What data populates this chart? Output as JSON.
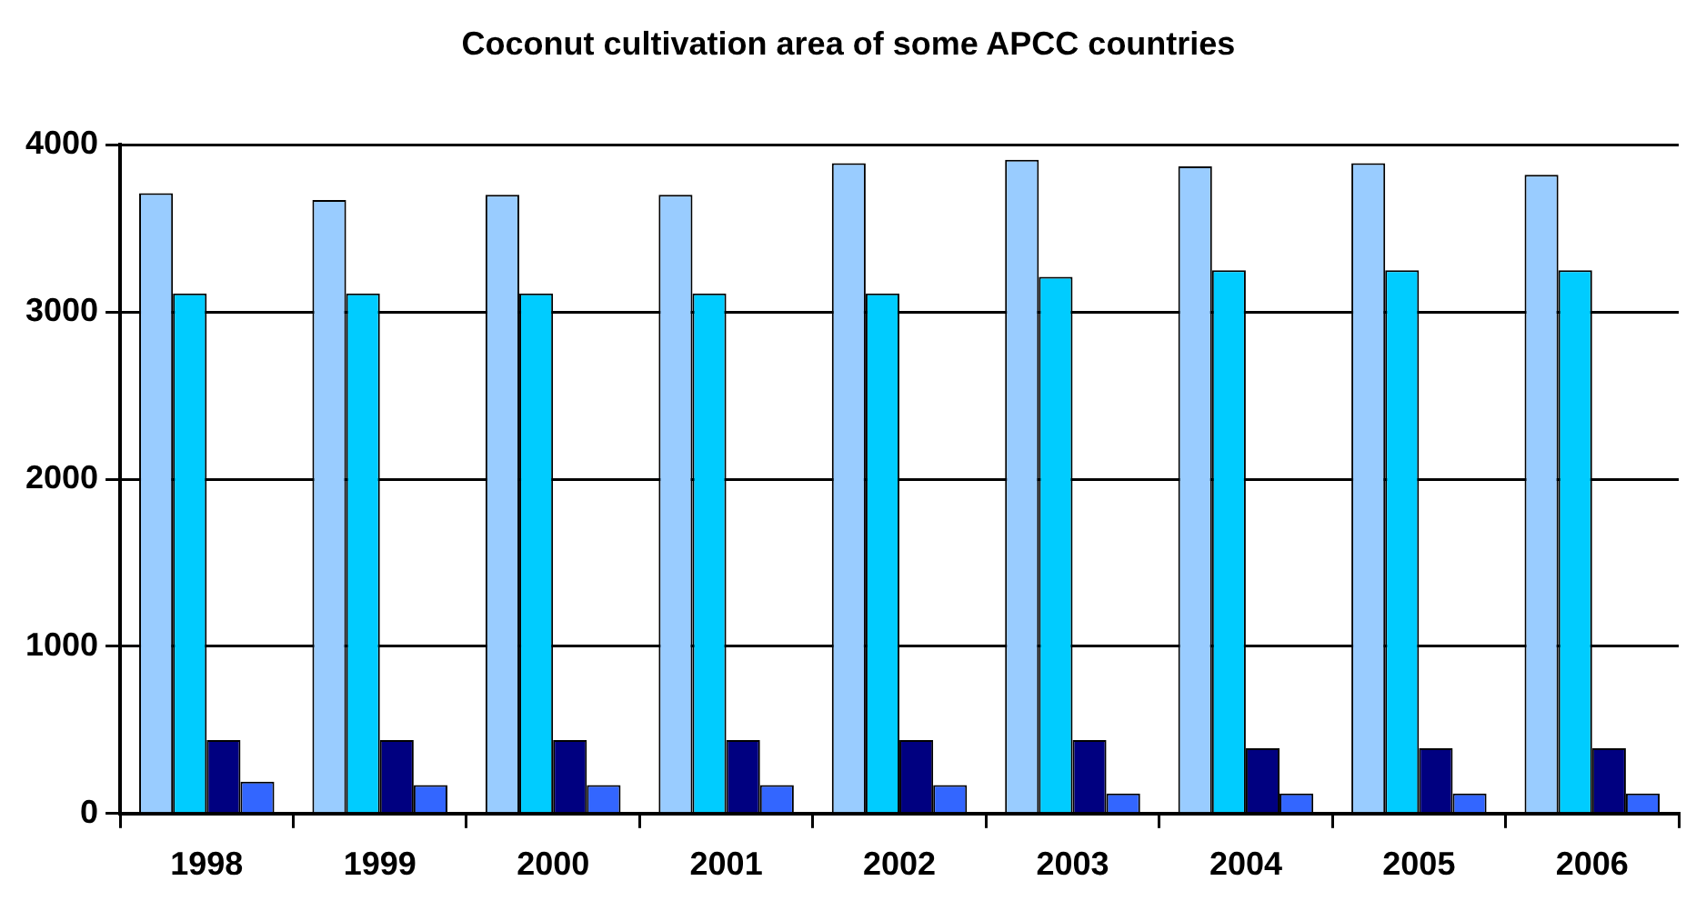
{
  "chart_data": {
    "type": "bar",
    "title": "Coconut cultivation area of some APCC countries",
    "categories": [
      "1998",
      "1999",
      "2000",
      "2001",
      "2002",
      "2003",
      "2004",
      "2005",
      "2006"
    ],
    "series": [
      {
        "color": "#99ccff",
        "values": [
          3710,
          3670,
          3700,
          3700,
          3890,
          3910,
          3870,
          3890,
          3820
        ]
      },
      {
        "color": "#00ccff",
        "values": [
          3110,
          3110,
          3110,
          3110,
          3110,
          3210,
          3250,
          3250,
          3250
        ]
      },
      {
        "color": "#000080",
        "values": [
          440,
          440,
          440,
          440,
          440,
          440,
          390,
          390,
          390
        ]
      },
      {
        "color": "#3366ff",
        "values": [
          190,
          170,
          170,
          170,
          170,
          120,
          120,
          120,
          120
        ]
      }
    ],
    "ylim": [
      0,
      4000
    ],
    "yticks": [
      0,
      1000,
      2000,
      3000,
      4000
    ],
    "grid": "y",
    "legend": false
  }
}
